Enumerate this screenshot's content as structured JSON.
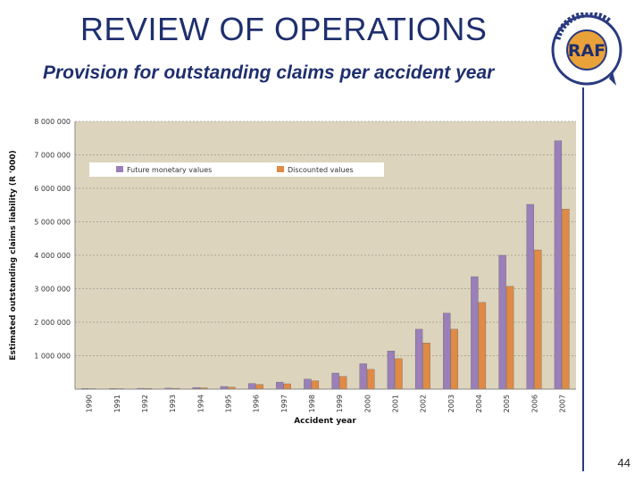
{
  "slide": {
    "title": "REVIEW OF OPERATIONS",
    "subtitle": "Provision for outstanding claims per accident year",
    "page_number": "44",
    "logo_text": "RAF",
    "logo_ring_text": "ROAD ACCIDENT FUND"
  },
  "colors": {
    "title": "#1f2f6e",
    "plot_bg": "#ddd4bd",
    "series_future": "#9a7fb8",
    "series_discounted": "#e08a45"
  },
  "chart_data": {
    "type": "bar",
    "title": "",
    "xlabel": "Accident year",
    "ylabel": "Estimated outstanding claims liability (R '000)",
    "ylim": [
      0,
      8000000
    ],
    "yticks": [
      1000000,
      2000000,
      3000000,
      4000000,
      5000000,
      6000000,
      7000000,
      8000000
    ],
    "ytick_labels": [
      "1 000 000",
      "2 000 000",
      "3 000 000",
      "4 000 000",
      "5 000 000",
      "6 000 000",
      "7 000 000",
      "8 000 000"
    ],
    "grid": true,
    "legend": "top-left",
    "categories": [
      "1990",
      "1991",
      "1992",
      "1993",
      "1994",
      "1995",
      "1996",
      "1997",
      "1998",
      "1999",
      "2000",
      "2001",
      "2002",
      "2003",
      "2004",
      "2005",
      "2006",
      "2007"
    ],
    "series": [
      {
        "name": "Future monetary values",
        "values": [
          20000,
          20000,
          25000,
          30000,
          50000,
          80000,
          170000,
          210000,
          300000,
          480000,
          760000,
          1140000,
          1790000,
          2270000,
          3360000,
          4000000,
          5520000,
          7420000
        ]
      },
      {
        "name": "Discounted values",
        "values": [
          15000,
          15000,
          20000,
          25000,
          40000,
          60000,
          140000,
          160000,
          250000,
          380000,
          590000,
          910000,
          1380000,
          1790000,
          2590000,
          3070000,
          4160000,
          5380000
        ]
      }
    ]
  }
}
